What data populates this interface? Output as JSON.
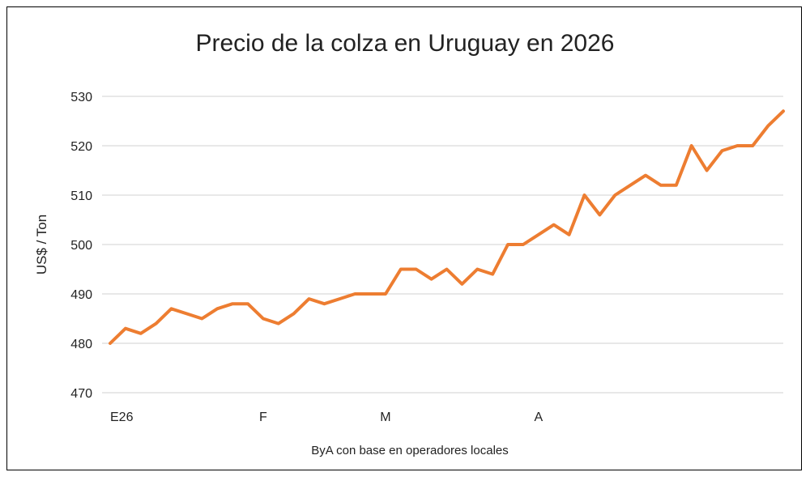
{
  "chart_data": {
    "type": "line",
    "title": "Precio de la colza en Uruguay en 2026",
    "ylabel": "US$ / Ton",
    "xlabel": "ByA con base en operadores locales",
    "ylim": [
      470,
      530
    ],
    "yticks": [
      470,
      480,
      490,
      500,
      510,
      520,
      530
    ],
    "x_tick_labels": [
      {
        "label": "E26",
        "index": 0
      },
      {
        "label": "F",
        "index": 10
      },
      {
        "label": "M",
        "index": 18
      },
      {
        "label": "A",
        "index": 28
      }
    ],
    "grid": true,
    "line_color": "#ED7D31",
    "series": [
      {
        "values": [
          480,
          483,
          482,
          484,
          487,
          486,
          485,
          487,
          488,
          488,
          485,
          484,
          486,
          489,
          488,
          489,
          490,
          490,
          490,
          495,
          495,
          493,
          495,
          492,
          495,
          494,
          500,
          500,
          502,
          504,
          502,
          510,
          506,
          510,
          512,
          514,
          512,
          512,
          520,
          515,
          519,
          520,
          520,
          524,
          527
        ]
      }
    ]
  }
}
